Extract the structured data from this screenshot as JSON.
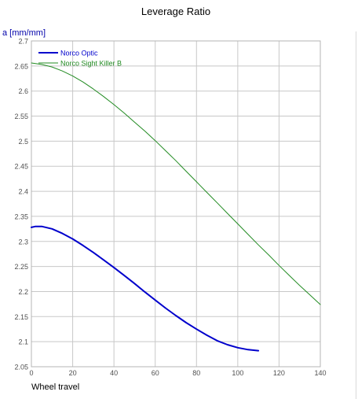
{
  "chart_data": {
    "type": "line",
    "title": "Leverage Ratio",
    "ylabel": "a [mm/mm]",
    "xlabel": "Wheel travel",
    "xlim": [
      0,
      140
    ],
    "ylim": [
      2.05,
      2.7
    ],
    "x_ticks": [
      "0",
      "20",
      "40",
      "60",
      "80",
      "100",
      "120",
      "140"
    ],
    "y_ticks": [
      "2.05",
      "2.1",
      "2.15",
      "2.2",
      "2.25",
      "2.3",
      "2.35",
      "2.4",
      "2.45",
      "2.5",
      "2.55",
      "2.6",
      "2.65",
      "2.7"
    ],
    "grid": true,
    "legend_position": "top-left",
    "series": [
      {
        "name": "Norco Optic",
        "color": "#0000cc",
        "x": [
          0,
          2,
          5,
          10,
          15,
          20,
          25,
          30,
          35,
          40,
          45,
          50,
          55,
          60,
          65,
          70,
          75,
          80,
          85,
          90,
          95,
          100,
          105,
          110
        ],
        "y": [
          2.328,
          2.33,
          2.33,
          2.325,
          2.316,
          2.305,
          2.292,
          2.278,
          2.263,
          2.248,
          2.232,
          2.216,
          2.199,
          2.183,
          2.167,
          2.152,
          2.138,
          2.125,
          2.113,
          2.102,
          2.094,
          2.088,
          2.084,
          2.082
        ]
      },
      {
        "name": "Norco Sight Killer B",
        "color": "#228b22",
        "x": [
          0,
          5,
          10,
          15,
          20,
          25,
          30,
          35,
          40,
          45,
          50,
          55,
          60,
          65,
          70,
          75,
          80,
          85,
          90,
          95,
          100,
          105,
          110,
          115,
          120,
          125,
          130,
          135,
          140
        ],
        "y": [
          2.656,
          2.653,
          2.648,
          2.64,
          2.63,
          2.618,
          2.604,
          2.589,
          2.573,
          2.556,
          2.538,
          2.52,
          2.501,
          2.481,
          2.461,
          2.44,
          2.419,
          2.398,
          2.377,
          2.356,
          2.335,
          2.314,
          2.293,
          2.273,
          2.252,
          2.232,
          2.212,
          2.193,
          2.174
        ]
      }
    ]
  }
}
